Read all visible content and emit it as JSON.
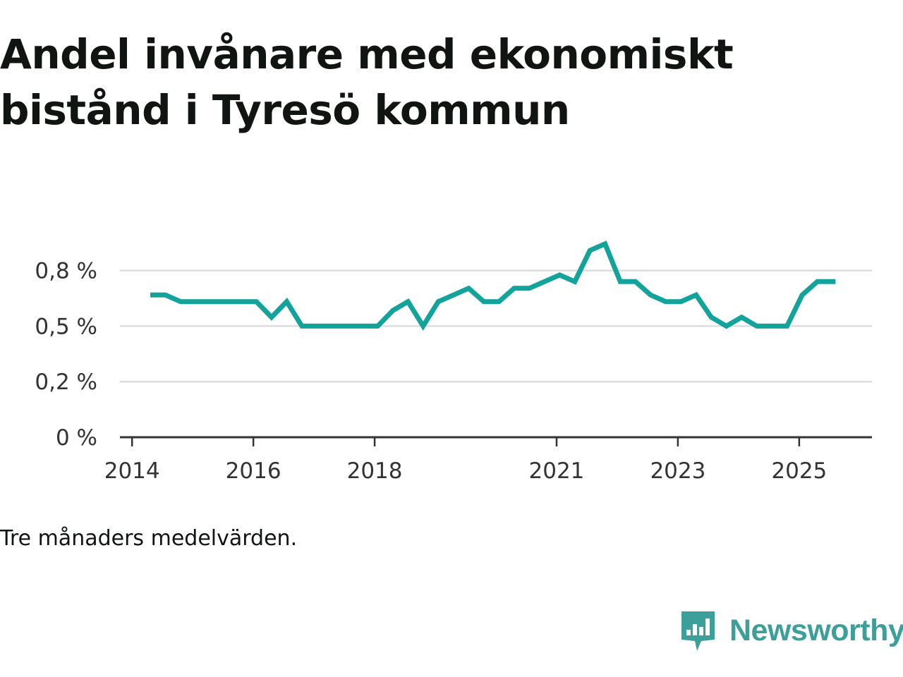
{
  "title": "Andel invånare med ekonomiskt bistånd i Tyresö kommun",
  "note": "Tre månaders medelvärden.",
  "brand": {
    "name": "Newsworthy",
    "icon": "newsworthy-logo-icon",
    "color": "#3d9f99"
  },
  "chart_data": {
    "type": "line",
    "title": "Andel invånare med ekonomiskt bistånd i Tyresö kommun",
    "xlabel": "",
    "ylabel": "",
    "series_color": "#13a39a",
    "grid": true,
    "x_range": [
      2013.8,
      2026.2
    ],
    "ylim": [
      0,
      0.92
    ],
    "y_ticks": [
      {
        "value": 0,
        "label": "0 %"
      },
      {
        "value": 0.25,
        "label": "0,2 %"
      },
      {
        "value": 0.5,
        "label": "0,5 %"
      },
      {
        "value": 0.75,
        "label": "0,8 %"
      }
    ],
    "x_ticks": [
      {
        "value": 2014,
        "label": "2014"
      },
      {
        "value": 2016,
        "label": "2016"
      },
      {
        "value": 2018,
        "label": "2018"
      },
      {
        "value": 2021,
        "label": "2021"
      },
      {
        "value": 2023,
        "label": "2023"
      },
      {
        "value": 2025,
        "label": "2025"
      }
    ],
    "series": [
      {
        "name": "Andel invånare med ekonomiskt bistånd",
        "x": [
          2014.3,
          2014.55,
          2014.8,
          2015.05,
          2015.3,
          2015.55,
          2015.8,
          2016.05,
          2016.3,
          2016.55,
          2016.8,
          2017.05,
          2017.3,
          2017.55,
          2017.8,
          2018.05,
          2018.3,
          2018.55,
          2018.8,
          2019.05,
          2019.3,
          2019.55,
          2019.8,
          2020.05,
          2020.3,
          2020.55,
          2020.8,
          2021.05,
          2021.3,
          2021.55,
          2021.8,
          2022.05,
          2022.3,
          2022.55,
          2022.8,
          2023.05,
          2023.3,
          2023.55,
          2023.8,
          2024.05,
          2024.3,
          2024.55,
          2024.8,
          2025.05,
          2025.3,
          2025.6
        ],
        "y": [
          0.64,
          0.64,
          0.61,
          0.61,
          0.61,
          0.61,
          0.61,
          0.61,
          0.54,
          0.61,
          0.5,
          0.5,
          0.5,
          0.5,
          0.5,
          0.5,
          0.57,
          0.61,
          0.5,
          0.61,
          0.64,
          0.67,
          0.61,
          0.61,
          0.67,
          0.67,
          0.7,
          0.73,
          0.7,
          0.84,
          0.87,
          0.7,
          0.7,
          0.64,
          0.61,
          0.61,
          0.64,
          0.54,
          0.5,
          0.54,
          0.5,
          0.5,
          0.5,
          0.64,
          0.7,
          0.7
        ]
      }
    ]
  }
}
